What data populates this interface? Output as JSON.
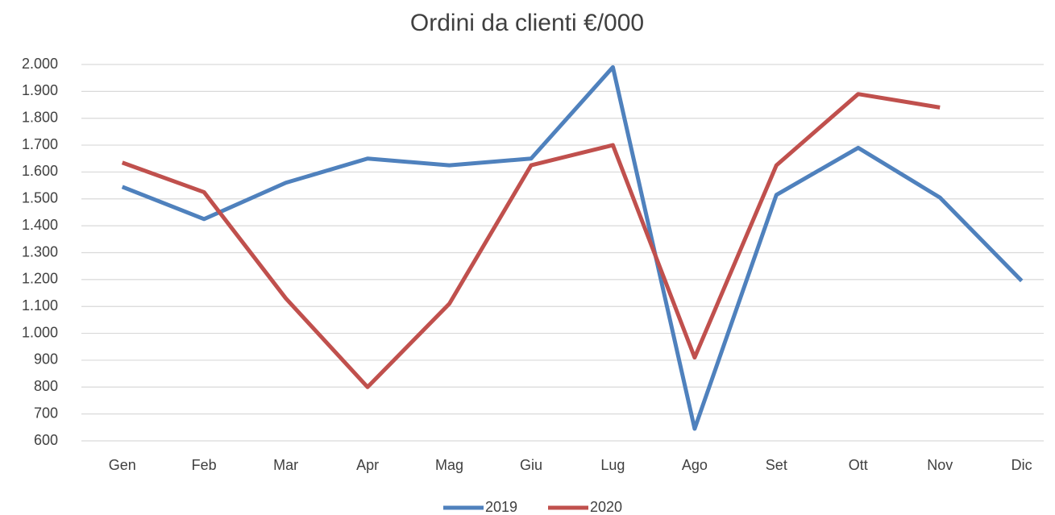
{
  "chart_data": {
    "type": "line",
    "title": "Ordini da clienti €/000",
    "categories": [
      "Gen",
      "Feb",
      "Mar",
      "Apr",
      "Mag",
      "Giu",
      "Lug",
      "Ago",
      "Set",
      "Ott",
      "Nov",
      "Dic"
    ],
    "series": [
      {
        "name": "2019",
        "color": "#4f81bd",
        "values": [
          1545,
          1425,
          1560,
          1650,
          1625,
          1650,
          1990,
          645,
          1515,
          1690,
          1505,
          1195
        ]
      },
      {
        "name": "2020",
        "color": "#c0504d",
        "values": [
          1635,
          1525,
          1130,
          800,
          1110,
          1625,
          1700,
          910,
          1625,
          1890,
          1840,
          null
        ]
      }
    ],
    "ylim": [
      600,
      2000
    ],
    "yticks": [
      600,
      700,
      800,
      900,
      {
        "value": 1000,
        "label": "1.000"
      },
      {
        "value": 1100,
        "label": "1.100"
      },
      {
        "value": 1200,
        "label": "1.200"
      },
      {
        "value": 1300,
        "label": "1.300"
      },
      {
        "value": 1400,
        "label": "1.400"
      },
      {
        "value": 1500,
        "label": "1.500"
      },
      {
        "value": 1600,
        "label": "1.600"
      },
      {
        "value": 1700,
        "label": "1.700"
      },
      {
        "value": 1800,
        "label": "1.800"
      },
      {
        "value": 1900,
        "label": "1.900"
      },
      {
        "value": 2000,
        "label": "2.000"
      }
    ],
    "grid": true,
    "legend": "bottom"
  }
}
